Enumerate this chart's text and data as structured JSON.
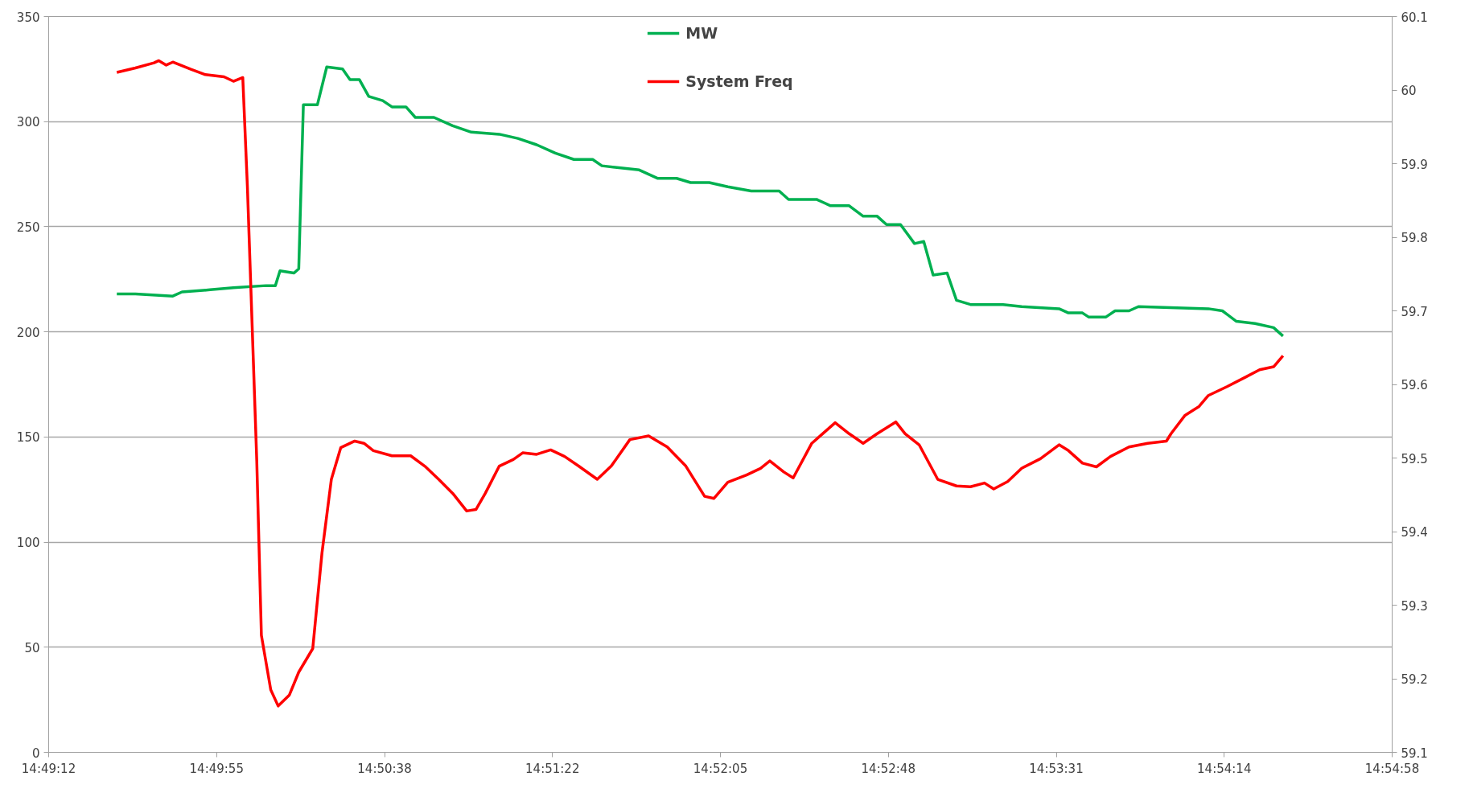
{
  "chart_data": {
    "type": "line",
    "xlim": [
      14.82,
      14.916
    ],
    "xticks": [
      {
        "value": 14.82,
        "label": "14:49:12"
      },
      {
        "value": 14.832,
        "label": "14:49:55"
      },
      {
        "value": 14.844,
        "label": "14:50:38"
      },
      {
        "value": 14.856,
        "label": "14:51:22"
      },
      {
        "value": 14.868,
        "label": "14:52:05"
      },
      {
        "value": 14.88,
        "label": "14:52:48"
      },
      {
        "value": 14.892,
        "label": "14:53:31"
      },
      {
        "value": 14.904,
        "label": "14:54:14"
      },
      {
        "value": 14.916,
        "label": "14:54:58"
      }
    ],
    "ylim": [
      0,
      350
    ],
    "yticks": [
      0,
      50,
      100,
      150,
      200,
      250,
      300,
      350
    ],
    "y2lim": [
      59.1,
      60.1
    ],
    "y2ticks": [
      59.1,
      59.2,
      59.3,
      59.4,
      59.5,
      59.6,
      59.7,
      59.8,
      59.9,
      60,
      60.1
    ],
    "grid": "y",
    "legend": "top",
    "marker": "none",
    "line_style": "solid",
    "series": [
      {
        "name": "MW",
        "color": "#00b050",
        "x": [
          14.82487,
          14.8262,
          14.82887,
          14.82953,
          14.83153,
          14.8332,
          14.83553,
          14.8362,
          14.83653,
          14.83753,
          14.83787,
          14.8382,
          14.8392,
          14.83987,
          14.841,
          14.84153,
          14.8422,
          14.84287,
          14.84387,
          14.84453,
          14.84553,
          14.8462,
          14.84753,
          14.84887,
          14.8502,
          14.8522,
          14.85353,
          14.85487,
          14.8562,
          14.85753,
          14.85887,
          14.85953,
          14.86087,
          14.8622,
          14.86353,
          14.86487,
          14.86587,
          14.8672,
          14.86853,
          14.8702,
          14.8722,
          14.87287,
          14.87487,
          14.87587,
          14.8772,
          14.8782,
          14.8792,
          14.87987,
          14.88087,
          14.88187,
          14.88253,
          14.8832,
          14.8842,
          14.88487,
          14.88587,
          14.8882,
          14.88953,
          14.8922,
          14.89287,
          14.89387,
          14.89433,
          14.89553,
          14.8962,
          14.8972,
          14.89787,
          14.90287,
          14.90387,
          14.90487,
          14.9062,
          14.90753,
          14.9082
        ],
        "values": [
          218,
          218,
          217,
          219,
          220,
          221,
          222,
          222,
          229,
          228,
          230,
          308,
          308,
          326,
          325,
          320,
          320,
          312,
          310,
          307,
          307,
          302,
          302,
          298,
          295,
          294,
          292,
          289,
          285,
          282,
          282,
          279,
          278,
          277,
          273,
          273,
          271,
          271,
          269,
          267,
          267,
          263,
          263,
          260,
          260,
          255,
          255,
          251,
          251,
          242,
          243,
          227,
          228,
          215,
          213,
          213,
          212,
          211,
          209,
          209,
          207,
          207,
          210,
          210,
          212,
          211,
          210,
          205,
          204,
          202,
          198
        ]
      },
      {
        "name": "System Freq",
        "color": "#ff0000",
        "axis": "y2",
        "x": [
          14.82487,
          14.8262,
          14.82753,
          14.82787,
          14.8284,
          14.82887,
          14.8302,
          14.8312,
          14.83253,
          14.8332,
          14.83387,
          14.8342,
          14.83487,
          14.8352,
          14.83587,
          14.8364,
          14.8372,
          14.83787,
          14.83887,
          14.83953,
          14.8402,
          14.84087,
          14.84187,
          14.84253,
          14.8432,
          14.84453,
          14.84587,
          14.84687,
          14.84787,
          14.84887,
          14.84987,
          14.85053,
          14.8512,
          14.8522,
          14.8532,
          14.85387,
          14.85487,
          14.85587,
          14.85687,
          14.85787,
          14.8592,
          14.8602,
          14.86153,
          14.86287,
          14.8642,
          14.86553,
          14.86687,
          14.86753,
          14.86853,
          14.86987,
          14.87087,
          14.87153,
          14.87253,
          14.8732,
          14.87453,
          14.8762,
          14.8772,
          14.8782,
          14.8792,
          14.88053,
          14.8812,
          14.8822,
          14.88353,
          14.88487,
          14.88587,
          14.88687,
          14.88753,
          14.88853,
          14.88953,
          14.89087,
          14.8922,
          14.89287,
          14.89387,
          14.89487,
          14.89587,
          14.8972,
          14.89853,
          14.89987,
          14.9002,
          14.9012,
          14.9022,
          14.90287,
          14.9042,
          14.90553,
          14.90653,
          14.90753,
          14.9082
        ],
        "values": [
          60.024,
          60.03,
          60.037,
          60.04,
          60.034,
          60.038,
          60.028,
          60.021,
          60.018,
          60.012,
          60.017,
          59.869,
          59.496,
          59.259,
          59.185,
          59.163,
          59.178,
          59.209,
          59.241,
          59.371,
          59.471,
          59.514,
          59.523,
          59.52,
          59.51,
          59.503,
          59.503,
          59.489,
          59.471,
          59.452,
          59.428,
          59.43,
          59.452,
          59.489,
          59.498,
          59.507,
          59.505,
          59.511,
          59.502,
          59.489,
          59.471,
          59.489,
          59.525,
          59.53,
          59.515,
          59.489,
          59.448,
          59.445,
          59.467,
          59.477,
          59.486,
          59.496,
          59.481,
          59.473,
          59.52,
          59.548,
          59.533,
          59.52,
          59.533,
          59.549,
          59.533,
          59.518,
          59.471,
          59.462,
          59.461,
          59.466,
          59.458,
          59.468,
          59.486,
          59.499,
          59.518,
          59.51,
          59.493,
          59.488,
          59.502,
          59.515,
          59.52,
          59.523,
          59.533,
          59.558,
          59.57,
          59.585,
          59.597,
          59.61,
          59.62,
          59.624,
          59.639
        ]
      }
    ]
  }
}
